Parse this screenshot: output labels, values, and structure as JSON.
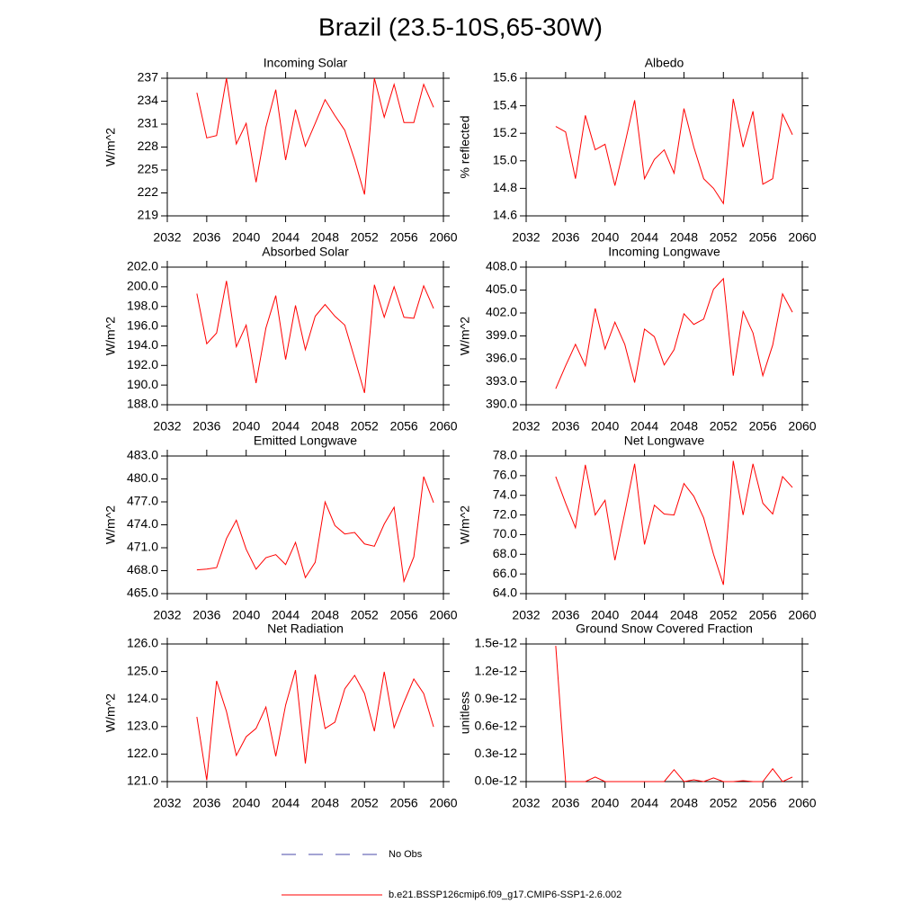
{
  "title": "Brazil (23.5-10S,65-30W)",
  "legend": [
    {
      "label": "No Obs",
      "color": "#4a4aa8",
      "dashed": true
    },
    {
      "label": "b.e21.BSSP126cmip6.f09_g17.CMIP6-SSP1-2.6.002",
      "color": "#ff0000",
      "dashed": false
    }
  ],
  "chart_data": [
    {
      "type": "line",
      "title": "Incoming Solar",
      "ylabel": "W/m^2",
      "color": "#ff0000",
      "x": [
        2035,
        2036,
        2037,
        2038,
        2039,
        2040,
        2041,
        2042,
        2043,
        2044,
        2045,
        2046,
        2047,
        2048,
        2049,
        2050,
        2051,
        2052,
        2053,
        2054,
        2055,
        2056,
        2057,
        2058,
        2059
      ],
      "values": [
        235.1,
        229.2,
        229.5,
        237.0,
        228.4,
        231.1,
        223.4,
        230.6,
        235.5,
        226.3,
        232.9,
        228.1,
        231.1,
        234.2,
        232.1,
        230.2,
        226.3,
        221.8,
        237.0,
        231.9,
        236.2,
        231.2,
        231.2,
        236.2,
        233.2
      ],
      "xlim": [
        2032,
        2060
      ],
      "xticks": [
        2032,
        2036,
        2040,
        2044,
        2048,
        2052,
        2056,
        2060
      ],
      "ylim": [
        219,
        237
      ],
      "yticks": [
        219,
        222,
        225,
        228,
        231,
        234,
        237
      ]
    },
    {
      "type": "line",
      "title": "Albedo",
      "ylabel": "% reflected",
      "color": "#ff0000",
      "x": [
        2035,
        2036,
        2037,
        2038,
        2039,
        2040,
        2041,
        2042,
        2043,
        2044,
        2045,
        2046,
        2047,
        2048,
        2049,
        2050,
        2051,
        2052,
        2053,
        2054,
        2055,
        2056,
        2057,
        2058,
        2059
      ],
      "values": [
        15.25,
        15.21,
        14.87,
        15.33,
        15.08,
        15.12,
        14.82,
        15.12,
        15.44,
        14.87,
        15.01,
        15.08,
        14.91,
        15.38,
        15.1,
        14.87,
        14.8,
        14.69,
        15.45,
        15.1,
        15.36,
        14.83,
        14.87,
        15.34,
        15.19
      ],
      "xlim": [
        2032,
        2060
      ],
      "xticks": [
        2032,
        2036,
        2040,
        2044,
        2048,
        2052,
        2056,
        2060
      ],
      "ylim": [
        14.6,
        15.6
      ],
      "yticks": [
        14.6,
        14.8,
        {
          "value": 15,
          "label": "15.0"
        },
        15.2,
        15.4,
        15.6
      ]
    },
    {
      "type": "line",
      "title": "Absorbed Solar",
      "ylabel": "W/m^2",
      "color": "#ff0000",
      "x": [
        2035,
        2036,
        2037,
        2038,
        2039,
        2040,
        2041,
        2042,
        2043,
        2044,
        2045,
        2046,
        2047,
        2048,
        2049,
        2050,
        2051,
        2052,
        2053,
        2054,
        2055,
        2056,
        2057,
        2058,
        2059
      ],
      "values": [
        199.3,
        194.2,
        195.3,
        200.6,
        193.9,
        196.1,
        190.2,
        195.8,
        199.1,
        192.6,
        198.1,
        193.6,
        197.0,
        198.2,
        197.0,
        196.1,
        192.7,
        189.2,
        200.2,
        196.9,
        200.0,
        196.9,
        196.8,
        200.1,
        197.8
      ],
      "xlim": [
        2032,
        2060
      ],
      "xticks": [
        2032,
        2036,
        2040,
        2044,
        2048,
        2052,
        2056,
        2060
      ],
      "ylim": [
        188,
        202
      ],
      "yticks": [
        {
          "value": 188,
          "label": "188.0"
        },
        {
          "value": 190,
          "label": "190.0"
        },
        {
          "value": 192,
          "label": "192.0"
        },
        {
          "value": 194,
          "label": "194.0"
        },
        {
          "value": 196,
          "label": "196.0"
        },
        {
          "value": 198,
          "label": "198.0"
        },
        {
          "value": 200,
          "label": "200.0"
        },
        {
          "value": 202,
          "label": "202.0"
        }
      ]
    },
    {
      "type": "line",
      "title": "Incoming Longwave",
      "ylabel": "W/m^2",
      "color": "#ff0000",
      "x": [
        2035,
        2036,
        2037,
        2038,
        2039,
        2040,
        2041,
        2042,
        2043,
        2044,
        2045,
        2046,
        2047,
        2048,
        2049,
        2050,
        2051,
        2052,
        2053,
        2054,
        2055,
        2056,
        2057,
        2058,
        2059
      ],
      "values": [
        392.1,
        395.1,
        397.9,
        395.1,
        402.6,
        397.3,
        400.8,
        397.9,
        392.9,
        399.9,
        398.9,
        395.2,
        397.2,
        401.9,
        400.5,
        401.2,
        405.1,
        406.5,
        393.8,
        402.2,
        399.4,
        393.8,
        397.8,
        404.5,
        402.1
      ],
      "xlim": [
        2032,
        2060
      ],
      "xticks": [
        2032,
        2036,
        2040,
        2044,
        2048,
        2052,
        2056,
        2060
      ],
      "ylim": [
        390,
        408
      ],
      "yticks": [
        {
          "value": 390,
          "label": "390.0"
        },
        {
          "value": 393,
          "label": "393.0"
        },
        {
          "value": 396,
          "label": "396.0"
        },
        {
          "value": 399,
          "label": "399.0"
        },
        {
          "value": 402,
          "label": "402.0"
        },
        {
          "value": 405,
          "label": "405.0"
        },
        {
          "value": 408,
          "label": "408.0"
        }
      ]
    },
    {
      "type": "line",
      "title": "Emitted Longwave",
      "ylabel": "W/m^2",
      "color": "#ff0000",
      "x": [
        2035,
        2036,
        2037,
        2038,
        2039,
        2040,
        2041,
        2042,
        2043,
        2044,
        2045,
        2046,
        2047,
        2048,
        2049,
        2050,
        2051,
        2052,
        2053,
        2054,
        2055,
        2056,
        2057,
        2058,
        2059
      ],
      "values": [
        468.1,
        468.2,
        468.4,
        472.2,
        474.6,
        470.8,
        468.2,
        469.7,
        470.1,
        468.8,
        471.7,
        467.1,
        469.1,
        477.0,
        473.9,
        472.8,
        473.0,
        471.5,
        471.2,
        474.1,
        476.3,
        466.6,
        469.8,
        480.3,
        476.9
      ],
      "xlim": [
        2032,
        2060
      ],
      "xticks": [
        2032,
        2036,
        2040,
        2044,
        2048,
        2052,
        2056,
        2060
      ],
      "ylim": [
        465,
        483
      ],
      "yticks": [
        {
          "value": 465,
          "label": "465.0"
        },
        {
          "value": 468,
          "label": "468.0"
        },
        {
          "value": 471,
          "label": "471.0"
        },
        {
          "value": 474,
          "label": "474.0"
        },
        {
          "value": 477,
          "label": "477.0"
        },
        {
          "value": 480,
          "label": "480.0"
        },
        {
          "value": 483,
          "label": "483.0"
        }
      ]
    },
    {
      "type": "line",
      "title": "Net Longwave",
      "ylabel": "W/m^2",
      "color": "#ff0000",
      "x": [
        2035,
        2036,
        2037,
        2038,
        2039,
        2040,
        2041,
        2042,
        2043,
        2044,
        2045,
        2046,
        2047,
        2048,
        2049,
        2050,
        2051,
        2052,
        2053,
        2054,
        2055,
        2056,
        2057,
        2058,
        2059
      ],
      "values": [
        75.9,
        73.2,
        70.7,
        77.1,
        72.0,
        73.5,
        67.4,
        72.2,
        77.2,
        69.0,
        73.0,
        72.1,
        72.0,
        75.2,
        73.9,
        71.7,
        68.0,
        64.9,
        77.5,
        72.0,
        77.2,
        73.2,
        72.1,
        75.9,
        74.8
      ],
      "xlim": [
        2032,
        2060
      ],
      "xticks": [
        2032,
        2036,
        2040,
        2044,
        2048,
        2052,
        2056,
        2060
      ],
      "ylim": [
        64,
        78
      ],
      "yticks": [
        {
          "value": 64,
          "label": "64.0"
        },
        {
          "value": 66,
          "label": "66.0"
        },
        {
          "value": 68,
          "label": "68.0"
        },
        {
          "value": 70,
          "label": "70.0"
        },
        {
          "value": 72,
          "label": "72.0"
        },
        {
          "value": 74,
          "label": "74.0"
        },
        {
          "value": 76,
          "label": "76.0"
        },
        {
          "value": 78,
          "label": "78.0"
        }
      ]
    },
    {
      "type": "line",
      "title": "Net Radiation",
      "ylabel": "W/m^2",
      "color": "#ff0000",
      "x": [
        2035,
        2036,
        2037,
        2038,
        2039,
        2040,
        2041,
        2042,
        2043,
        2044,
        2045,
        2046,
        2047,
        2048,
        2049,
        2050,
        2051,
        2052,
        2053,
        2054,
        2055,
        2056,
        2057,
        2058,
        2059
      ],
      "values": [
        123.35,
        121.05,
        124.66,
        123.55,
        121.95,
        122.63,
        122.93,
        123.71,
        121.92,
        123.78,
        125.05,
        121.66,
        124.89,
        122.93,
        123.16,
        124.37,
        124.86,
        124.2,
        122.83,
        124.99,
        122.96,
        123.88,
        124.73,
        124.2,
        122.99
      ],
      "xlim": [
        2032,
        2060
      ],
      "xticks": [
        2032,
        2036,
        2040,
        2044,
        2048,
        2052,
        2056,
        2060
      ],
      "ylim": [
        121,
        126
      ],
      "yticks": [
        {
          "value": 121,
          "label": "121.0"
        },
        {
          "value": 122,
          "label": "122.0"
        },
        {
          "value": 123,
          "label": "123.0"
        },
        {
          "value": 124,
          "label": "124.0"
        },
        {
          "value": 125,
          "label": "125.0"
        },
        {
          "value": 126,
          "label": "126.0"
        }
      ]
    },
    {
      "type": "line",
      "title": "Ground Snow Covered Fraction",
      "ylabel": "unitless",
      "color": "#ff0000",
      "x": [
        2035,
        2036,
        2037,
        2038,
        2039,
        2040,
        2041,
        2042,
        2043,
        2044,
        2045,
        2046,
        2047,
        2048,
        2049,
        2050,
        2051,
        2052,
        2053,
        2054,
        2055,
        2056,
        2057,
        2058,
        2059
      ],
      "values": [
        1.48e-12,
        0,
        0,
        0,
        5e-14,
        0,
        0,
        0,
        0,
        0,
        0,
        0,
        1.3e-13,
        0,
        2e-14,
        0,
        4e-14,
        0,
        0,
        1e-14,
        0,
        0,
        1.4e-13,
        0,
        5e-14
      ],
      "xlim": [
        2032,
        2060
      ],
      "xticks": [
        2032,
        2036,
        2040,
        2044,
        2048,
        2052,
        2056,
        2060
      ],
      "ylim": [
        0,
        1.5e-12
      ],
      "yticks": [
        {
          "value": 0,
          "label": "0.0e-12"
        },
        {
          "value": 3e-13,
          "label": "0.3e-12"
        },
        {
          "value": 6e-13,
          "label": "0.6e-12"
        },
        {
          "value": 9e-13,
          "label": "0.9e-12"
        },
        {
          "value": 1.2e-12,
          "label": "1.2e-12"
        },
        {
          "value": 1.5e-12,
          "label": "1.5e-12"
        }
      ]
    }
  ]
}
